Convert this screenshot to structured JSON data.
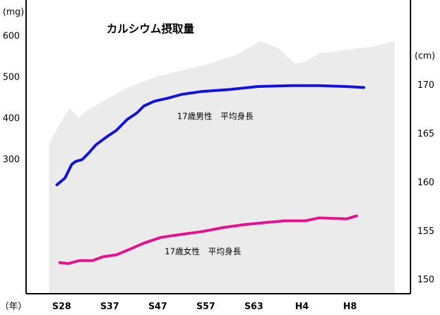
{
  "chart_data": {
    "type": "line",
    "title": "カルシウム摂取量",
    "y_unit": "(mg)",
    "y2_unit": "(cm)",
    "x_unit": "（年）",
    "xlim": [
      -0.74,
      7.26
    ],
    "xticks": [
      {
        "value": 0,
        "label": "S28"
      },
      {
        "value": 1,
        "label": "S37"
      },
      {
        "value": 2,
        "label": "S47"
      },
      {
        "value": 3,
        "label": "S57"
      },
      {
        "value": 4,
        "label": "S63"
      },
      {
        "value": 5,
        "label": "H4"
      },
      {
        "value": 6,
        "label": "H8"
      }
    ],
    "ylim": [
      -25,
      688
    ],
    "yticks": [
      300,
      400,
      500,
      600
    ],
    "y2lim": [
      148.6,
      178.8
    ],
    "y2ticks": [
      150,
      155,
      160,
      165,
      170
    ],
    "series": [
      {
        "name": "カルシウム摂取量",
        "kind": "area",
        "color": "#ebebeb",
        "x": [
          -0.26,
          0,
          0.17,
          0.36,
          0.5,
          0.93,
          1.36,
          1.93,
          2.5,
          3.07,
          3.64,
          4.14,
          4.5,
          4.86,
          5.07,
          5.36,
          5.93,
          6.5,
          6.93
        ],
        "values": [
          338,
          397,
          425,
          402,
          418,
          447,
          475,
          500,
          517,
          533,
          555,
          588,
          572,
          533,
          538,
          558,
          567,
          575,
          588
        ]
      },
      {
        "name": "17歳男性　平均身長",
        "kind": "line",
        "axis": "y2",
        "color": "#1010e0",
        "x": [
          -0.1,
          0.07,
          0.21,
          0.29,
          0.43,
          0.57,
          0.71,
          0.93,
          1.14,
          1.36,
          1.57,
          1.71,
          1.93,
          2.21,
          2.5,
          2.93,
          3.5,
          4.07,
          4.79,
          5.36,
          5.93,
          6.29
        ],
        "values": [
          159.8,
          160.5,
          161.9,
          162.2,
          162.4,
          163.1,
          163.9,
          164.7,
          165.4,
          166.5,
          167.2,
          167.9,
          168.4,
          168.7,
          169.1,
          169.4,
          169.6,
          169.9,
          170.0,
          170.0,
          169.9,
          169.8
        ]
      },
      {
        "name": "17歳女性　平均身長",
        "kind": "line",
        "axis": "y2",
        "color": "#e8108c",
        "x": [
          -0.04,
          0.14,
          0.36,
          0.64,
          0.86,
          1.14,
          1.43,
          1.71,
          2.07,
          2.5,
          2.93,
          3.36,
          3.79,
          4.21,
          4.64,
          5.07,
          5.36,
          5.93,
          6.14
        ],
        "values": [
          151.8,
          151.7,
          152.0,
          152.0,
          152.4,
          152.6,
          153.2,
          153.8,
          154.4,
          154.7,
          155.0,
          155.4,
          155.7,
          155.9,
          156.1,
          156.1,
          156.4,
          156.3,
          156.6
        ]
      }
    ]
  }
}
